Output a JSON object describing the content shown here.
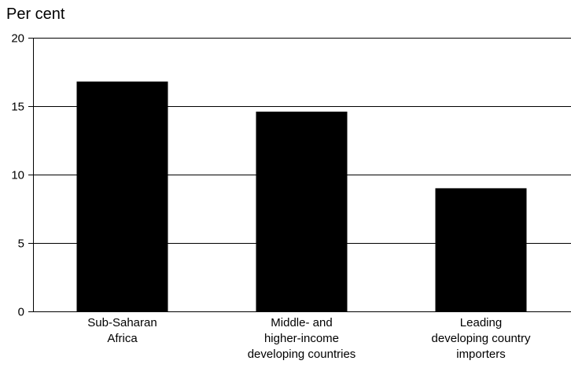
{
  "chart_data": {
    "type": "bar",
    "title": "",
    "xlabel": "",
    "ylabel": "Per cent",
    "ylim": [
      0,
      20
    ],
    "yticks": [
      "0",
      "5",
      "10",
      "15",
      "20"
    ],
    "grid": true,
    "categories": [
      [
        "Sub-Saharan",
        "Africa"
      ],
      [
        "Middle- and",
        "higher-income",
        "developing countries"
      ],
      [
        "Leading",
        "developing country",
        "importers"
      ]
    ],
    "values": [
      16.8,
      14.6,
      9.0
    ],
    "bar_color": "#000000"
  }
}
